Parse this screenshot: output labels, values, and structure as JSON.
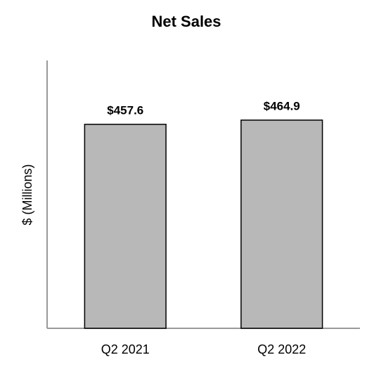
{
  "chart_data": {
    "type": "bar",
    "title": "Net Sales",
    "y_label": "$ (Millions)",
    "categories": [
      "Q2 2021",
      "Q2 2022"
    ],
    "values": [
      457.6,
      464.9
    ],
    "value_labels": [
      "$457.6",
      "$464.9"
    ],
    "color": "#b8b8b8",
    "ylim": [
      105,
      568
    ]
  }
}
